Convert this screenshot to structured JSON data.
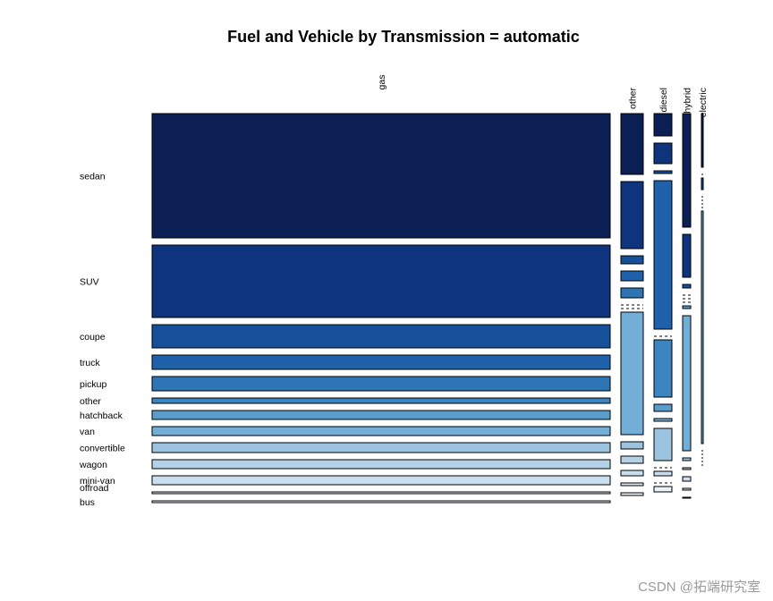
{
  "chart_data": {
    "type": "mosaic",
    "title": "Fuel and Vehicle by Transmission = automatic",
    "fuel_types": [
      "gas",
      "other",
      "diesel",
      "hybrid",
      "electric"
    ],
    "fuel_widths": [
      512,
      25,
      20,
      9,
      2
    ],
    "vehicle_types": [
      "sedan",
      "SUV",
      "coupe",
      "truck",
      "pickup",
      "other",
      "hatchback",
      "van",
      "convertible",
      "wagon",
      "mini-van",
      "offroad",
      "bus"
    ],
    "gas_heights": [
      139,
      81,
      26,
      16,
      16,
      6,
      10,
      10,
      11,
      10,
      10,
      2,
      2
    ],
    "other_heights": [
      68,
      75,
      9,
      11,
      11,
      0,
      0,
      137,
      8,
      8,
      6,
      3,
      3
    ],
    "diesel_heights": [
      25,
      23,
      3,
      166,
      0,
      64,
      8,
      3,
      36,
      0,
      5,
      0,
      6
    ],
    "hybrid_heights": [
      127,
      48,
      4,
      0,
      0,
      0,
      3,
      151,
      3,
      2,
      5,
      2,
      1
    ],
    "electric_heights": [
      60,
      0,
      13,
      0,
      0,
      0,
      0,
      260,
      0,
      0,
      0,
      0,
      0
    ],
    "colors": [
      "#0b1f55",
      "#0d347c",
      "#16509a",
      "#1f62ab",
      "#2e75b6",
      "#3d85c0",
      "#5a9dcd",
      "#72aed6",
      "#9cc4e0",
      "#b3d2e8",
      "#c9dff0",
      "#dce9f5",
      "#eaf2fa"
    ],
    "ylabel": "",
    "xlabel": ""
  },
  "watermark": "CSDN @拓端研究室"
}
